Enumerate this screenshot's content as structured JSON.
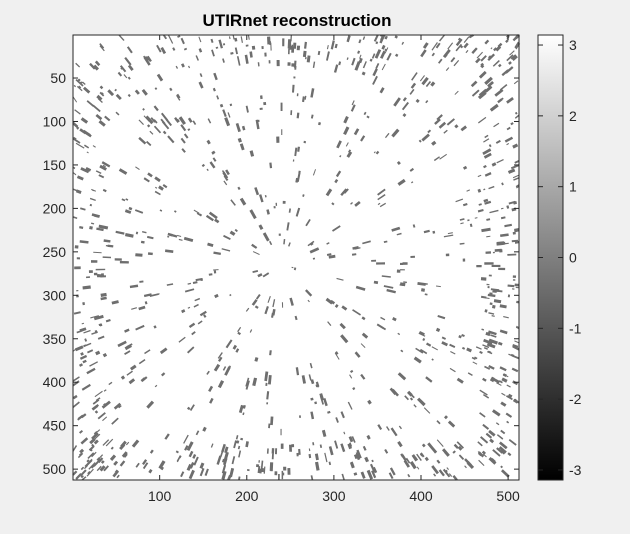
{
  "chart_data": {
    "type": "heatmap",
    "title": "UTIRnet reconstruction",
    "xlabel": "",
    "ylabel": "",
    "image_size": [
      512,
      512
    ],
    "xlim": [
      0.5,
      512.5
    ],
    "ylim": [
      0.5,
      512.5
    ],
    "x_ticks": [
      100,
      200,
      300,
      400,
      500
    ],
    "y_ticks": [
      50,
      100,
      150,
      200,
      250,
      300,
      350,
      400,
      450,
      500
    ],
    "colormap": "gray",
    "clim": [
      -3.1416,
      3.1416
    ],
    "colorbar_ticks": [
      3,
      2,
      1,
      0,
      -1,
      -2,
      -3
    ],
    "pixel_values_present": [
      3.1416,
      -0.6
    ],
    "dominant_value": 3.1416,
    "speckle_value": -0.6,
    "speckle_fraction_approx": 0.18,
    "pattern": "radial streaks converging near (240, 265)",
    "grid": false,
    "colors": {
      "speckle": "#6e6e6e",
      "background_value": "#ffffff"
    }
  }
}
